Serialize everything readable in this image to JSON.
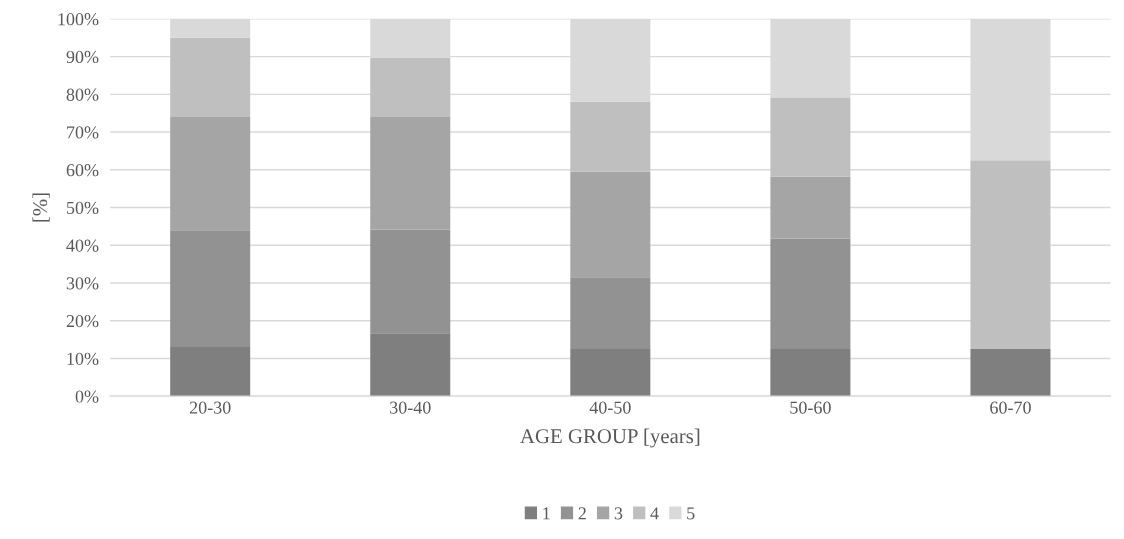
{
  "chart_data": {
    "type": "bar",
    "stacked": true,
    "xlabel": "AGE GROUP [years]",
    "ylabel": "[%]",
    "categories": [
      "20-30",
      "30-40",
      "40-50",
      "50-60",
      "60-70"
    ],
    "series": [
      {
        "name": "1",
        "color": "#7f7f7f",
        "values": [
          13,
          16.7,
          12.5,
          12.5,
          12.5
        ]
      },
      {
        "name": "2",
        "color": "#929292",
        "values": [
          31,
          27.5,
          19,
          29.3,
          0
        ]
      },
      {
        "name": "3",
        "color": "#a5a5a5",
        "values": [
          30,
          29.8,
          28,
          16.4,
          0
        ]
      },
      {
        "name": "4",
        "color": "#bfbfbf",
        "values": [
          21,
          15.7,
          18.5,
          20.8,
          50
        ]
      },
      {
        "name": "5",
        "color": "#d9d9d9",
        "values": [
          5,
          10.3,
          22,
          21,
          37.5
        ]
      }
    ],
    "ylim": [
      0,
      100
    ],
    "yticks": [
      {
        "value": 0,
        "label": "0%"
      },
      {
        "value": 10,
        "label": "10%"
      },
      {
        "value": 20,
        "label": "20%"
      },
      {
        "value": 30,
        "label": "30%"
      },
      {
        "value": 40,
        "label": "40%"
      },
      {
        "value": 50,
        "label": "50%"
      },
      {
        "value": 60,
        "label": "60%"
      },
      {
        "value": 70,
        "label": "70%"
      },
      {
        "value": 80,
        "label": "80%"
      },
      {
        "value": 90,
        "label": "90%"
      },
      {
        "value": 100,
        "label": "100%"
      }
    ],
    "grid": "y",
    "legend": "bottom"
  }
}
